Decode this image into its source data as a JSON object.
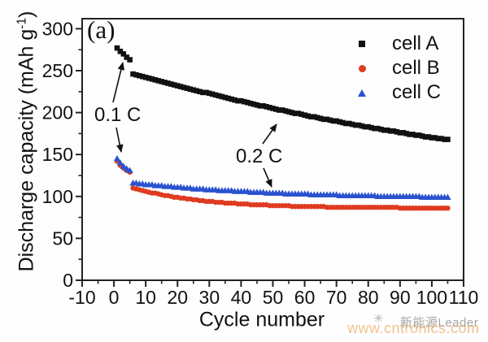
{
  "figure": {
    "panel_label": "(a)"
  },
  "chart_data": {
    "type": "scatter",
    "title": "",
    "xlabel": "Cycle number",
    "ylabel": "Discharge capacity (mAh g⁻¹)",
    "ylabel_main": "Discharge capacity (mAh g",
    "ylabel_sup": "-1",
    "ylabel_end": ")",
    "xlim": [
      -10,
      110
    ],
    "ylim": [
      0,
      312
    ],
    "x_major_ticks": [
      -10,
      0,
      10,
      20,
      30,
      40,
      50,
      60,
      70,
      80,
      90,
      100,
      110
    ],
    "x_minor_step": 5,
    "y_major_ticks": [
      0,
      50,
      100,
      150,
      200,
      250,
      300
    ],
    "y_minor_step": 25,
    "grid": false,
    "legend_position": "upper right",
    "annotations": [
      {
        "label": "0.1 C"
      },
      {
        "label": "0.2 C"
      }
    ],
    "series": [
      {
        "name": "cell A",
        "marker": "square",
        "color": "#111111",
        "segments": [
          {
            "rate": "0.1 C",
            "x_start": 1,
            "values": [
              277,
              273,
              270,
              266,
              263
            ]
          },
          {
            "rate": "0.2 C",
            "x_start": 6,
            "values": [
              246,
              245,
              244,
              243,
              242,
              241,
              240,
              239,
              238,
              237,
              236,
              235,
              234,
              233,
              232,
              231,
              230,
              229,
              228,
              227,
              226,
              225,
              224,
              224,
              223,
              222,
              221,
              220,
              219,
              218,
              217,
              216,
              215,
              214,
              214,
              213,
              212,
              211,
              210,
              209,
              208,
              208,
              207,
              206,
              205,
              204,
              203,
              203,
              202,
              201,
              200,
              199,
              199,
              198,
              197,
              196,
              195,
              195,
              194,
              193,
              192,
              192,
              191,
              190,
              190,
              189,
              188,
              187,
              187,
              186,
              185,
              185,
              184,
              183,
              183,
              182,
              181,
              181,
              180,
              179,
              179,
              178,
              178,
              177,
              176,
              176,
              175,
              174,
              174,
              173,
              173,
              172,
              171,
              171,
              170,
              170,
              169,
              169,
              168,
              168
            ]
          }
        ]
      },
      {
        "name": "cell B",
        "marker": "circle",
        "color": "#df3b21",
        "segments": [
          {
            "rate": "0.1 C",
            "x_start": 1,
            "values": [
              142,
              137,
              134,
              131,
              129
            ]
          },
          {
            "rate": "0.2 C",
            "x_start": 6,
            "values": [
              110,
              109,
              108,
              107,
              106,
              105,
              104,
              104,
              103,
              102,
              101,
              101,
              100,
              99,
              99,
              98,
              98,
              97,
              97,
              96,
              96,
              95,
              95,
              94,
              94,
              94,
              93,
              93,
              93,
              92,
              92,
              92,
              92,
              91,
              91,
              91,
              91,
              90,
              90,
              90,
              90,
              90,
              90,
              89,
              89,
              89,
              89,
              89,
              89,
              89,
              88,
              88,
              88,
              88,
              88,
              88,
              88,
              88,
              88,
              88,
              88,
              87,
              87,
              87,
              87,
              87,
              87,
              87,
              87,
              87,
              87,
              87,
              87,
              87,
              87,
              87,
              87,
              87,
              87,
              87,
              87,
              87,
              87,
              87,
              86,
              86,
              86,
              86,
              86,
              86,
              86,
              86,
              86,
              86,
              86,
              86,
              86,
              86,
              86,
              86
            ]
          }
        ]
      },
      {
        "name": "cell C",
        "marker": "triangle",
        "color": "#2a52cf",
        "segments": [
          {
            "rate": "0.1 C",
            "x_start": 1,
            "values": [
              145,
              140,
              136,
              133,
              131
            ]
          },
          {
            "rate": "0.2 C",
            "x_start": 6,
            "values": [
              116,
              116,
              115,
              115,
              114,
              114,
              114,
              113,
              113,
              113,
              112,
              112,
              112,
              111,
              111,
              111,
              110,
              110,
              110,
              109,
              109,
              109,
              109,
              108,
              108,
              108,
              108,
              107,
              107,
              107,
              107,
              107,
              106,
              106,
              106,
              106,
              106,
              105,
              105,
              105,
              105,
              105,
              104,
              104,
              104,
              104,
              104,
              104,
              103,
              103,
              103,
              103,
              103,
              103,
              103,
              103,
              102,
              102,
              102,
              102,
              102,
              102,
              102,
              102,
              102,
              101,
              101,
              101,
              101,
              101,
              101,
              101,
              101,
              101,
              101,
              101,
              101,
              100,
              100,
              100,
              100,
              100,
              100,
              100,
              100,
              100,
              100,
              100,
              100,
              100,
              100,
              99,
              99,
              99,
              99,
              99,
              99,
              99,
              99,
              99
            ]
          }
        ]
      }
    ]
  },
  "watermark": {
    "logo_icon": "✳",
    "brand": "新能源Leader",
    "url": "www.cntronics.com",
    "brand_color": "#a6a6a6",
    "url_color": "rgba(232,156,74,0.62)"
  }
}
